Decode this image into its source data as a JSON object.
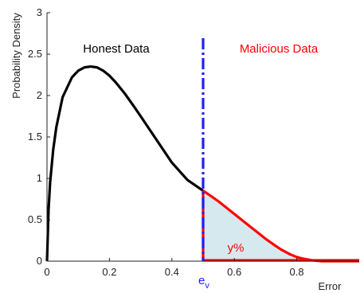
{
  "chart_data": {
    "type": "area",
    "title": "",
    "xlabel": "Error",
    "ylabel": "Probability Density",
    "xlim": [
      0,
      1
    ],
    "ylim": [
      0,
      3
    ],
    "grid": false,
    "x_ticks": [
      "0",
      "0.2",
      "0.4",
      "0.6",
      "0.8"
    ],
    "y_ticks": [
      "0",
      "0.5",
      "1",
      "1.5",
      "2",
      "2.5",
      "3"
    ],
    "threshold": {
      "x": 0.5,
      "label": "e",
      "label_sub": "v",
      "color": "#1f1fff"
    },
    "annotations": {
      "honest": "Honest Data",
      "malicious": "Malicious Data",
      "area": "y%"
    },
    "colors": {
      "honest": "#000000",
      "malicious": "#ff0000",
      "fill": "#d6e9ef",
      "threshold": "#1f1fff"
    },
    "series": [
      {
        "x": [
          0,
          0.005,
          0.01,
          0.02,
          0.03,
          0.05,
          0.08,
          0.1,
          0.12,
          0.14,
          0.16,
          0.18,
          0.2,
          0.22,
          0.25,
          0.28,
          0.3,
          0.35,
          0.4,
          0.45,
          0.5
        ],
        "y": [
          0,
          0.62,
          0.95,
          1.35,
          1.62,
          1.98,
          2.22,
          2.3,
          2.34,
          2.35,
          2.34,
          2.3,
          2.24,
          2.16,
          2.02,
          1.86,
          1.75,
          1.47,
          1.19,
          0.98,
          0.85
        ]
      },
      {
        "x": [
          0.5,
          0.52,
          0.55,
          0.58,
          0.6,
          0.63,
          0.65,
          0.68,
          0.7,
          0.73,
          0.75,
          0.78,
          0.8,
          0.82,
          0.85,
          0.88,
          0.9,
          0.95,
          1.0
        ],
        "y": [
          0.85,
          0.8,
          0.72,
          0.63,
          0.57,
          0.48,
          0.42,
          0.33,
          0.27,
          0.19,
          0.14,
          0.08,
          0.05,
          0.03,
          0.01,
          0.0,
          0.0,
          0.0,
          0.0
        ]
      }
    ]
  }
}
